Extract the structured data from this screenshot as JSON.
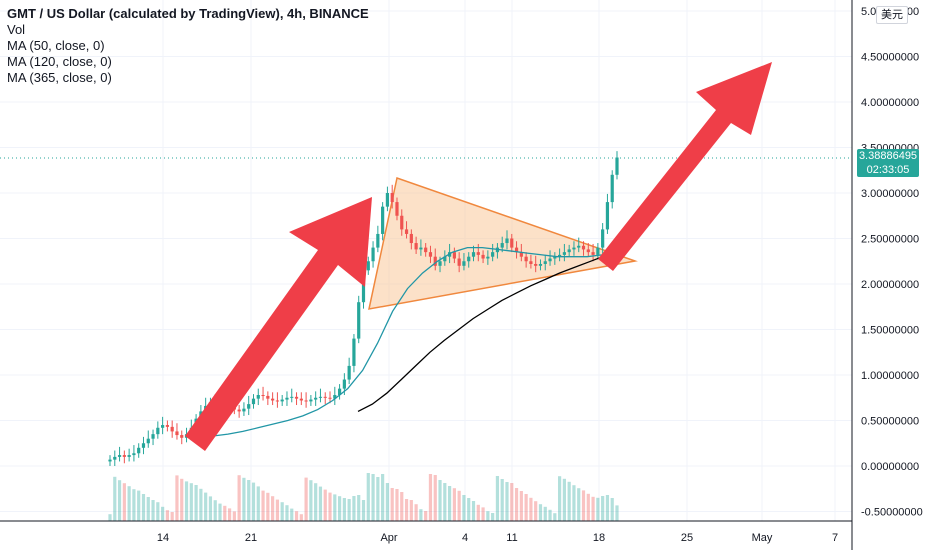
{
  "legend": {
    "title": "GMT / US Dollar (calculated by TradingView), 4h, BINANCE",
    "vol": "Vol",
    "ma50": "MA (50, close, 0)",
    "ma120": "MA (120, close, 0)",
    "ma365": "MA (365, close, 0)"
  },
  "toolbar": {
    "currency": "美元"
  },
  "last_price": {
    "value": "3.38886495",
    "countdown": "02:33:05"
  },
  "colors": {
    "up": "#26a69a",
    "down": "#ef5350",
    "ma50": "#2196a6",
    "ma120": "#000000",
    "triangle_fill": "#f9c89b",
    "triangle_stroke": "#f0883e",
    "arrow": "#ef3e48",
    "price_line": "#26a69a"
  },
  "chart_data": {
    "type": "candlestick",
    "x_ticks": [
      "14",
      "21",
      "Apr",
      "4",
      "11",
      "18",
      "25",
      "May",
      "7"
    ],
    "y_ticks": [
      "-0.50000000",
      "0.00000000",
      "0.50000000",
      "1.00000000",
      "1.50000000",
      "2.00000000",
      "2.50000000",
      "3.00000000",
      "3.50000000",
      "4.00000000",
      "4.50000000",
      "5.00000000"
    ],
    "ylim": [
      -0.55,
      5.1
    ],
    "last_close": 3.38886495,
    "closes": [
      0.07,
      0.1,
      0.12,
      0.1,
      0.12,
      0.14,
      0.2,
      0.25,
      0.3,
      0.35,
      0.42,
      0.45,
      0.43,
      0.38,
      0.34,
      0.31,
      0.35,
      0.42,
      0.52,
      0.6,
      0.66,
      0.7,
      0.72,
      0.73,
      0.7,
      0.66,
      0.62,
      0.6,
      0.63,
      0.68,
      0.74,
      0.78,
      0.77,
      0.74,
      0.72,
      0.71,
      0.73,
      0.75,
      0.76,
      0.74,
      0.72,
      0.71,
      0.73,
      0.75,
      0.76,
      0.75,
      0.74,
      0.78,
      0.85,
      0.95,
      1.1,
      1.4,
      1.8,
      2.15,
      2.25,
      2.4,
      2.55,
      2.85,
      3.0,
      2.9,
      2.75,
      2.6,
      2.55,
      2.45,
      2.38,
      2.4,
      2.35,
      2.3,
      2.2,
      2.25,
      2.3,
      2.35,
      2.28,
      2.2,
      2.25,
      2.3,
      2.35,
      2.32,
      2.28,
      2.3,
      2.35,
      2.4,
      2.45,
      2.5,
      2.4,
      2.35,
      2.3,
      2.25,
      2.22,
      2.2,
      2.22,
      2.25,
      2.28,
      2.3,
      2.32,
      2.35,
      2.38,
      2.4,
      2.42,
      2.38,
      2.35,
      2.32,
      2.4,
      2.6,
      2.9,
      3.2,
      3.39
    ],
    "series": [
      {
        "name": "MA (50, close, 0)",
        "values": [
          0.33,
          0.35,
          0.38,
          0.42,
          0.46,
          0.5,
          0.55,
          0.62,
          0.72,
          0.85,
          1.05,
          1.35,
          1.7,
          1.95,
          2.12,
          2.25,
          2.35,
          2.4,
          2.4,
          2.38,
          2.36,
          2.34,
          2.32,
          2.3,
          2.3,
          2.3,
          2.32,
          2.35
        ]
      },
      {
        "name": "MA (120, close, 0)",
        "values": [
          0.6,
          0.68,
          0.8,
          0.95,
          1.1,
          1.25,
          1.38,
          1.5,
          1.62,
          1.72,
          1.82,
          1.9,
          1.98,
          2.05,
          2.12,
          2.18,
          2.24,
          2.3,
          2.36
        ]
      }
    ],
    "annotations": [
      "ascending arrow",
      "symmetrical triangle",
      "breakout arrow"
    ]
  }
}
